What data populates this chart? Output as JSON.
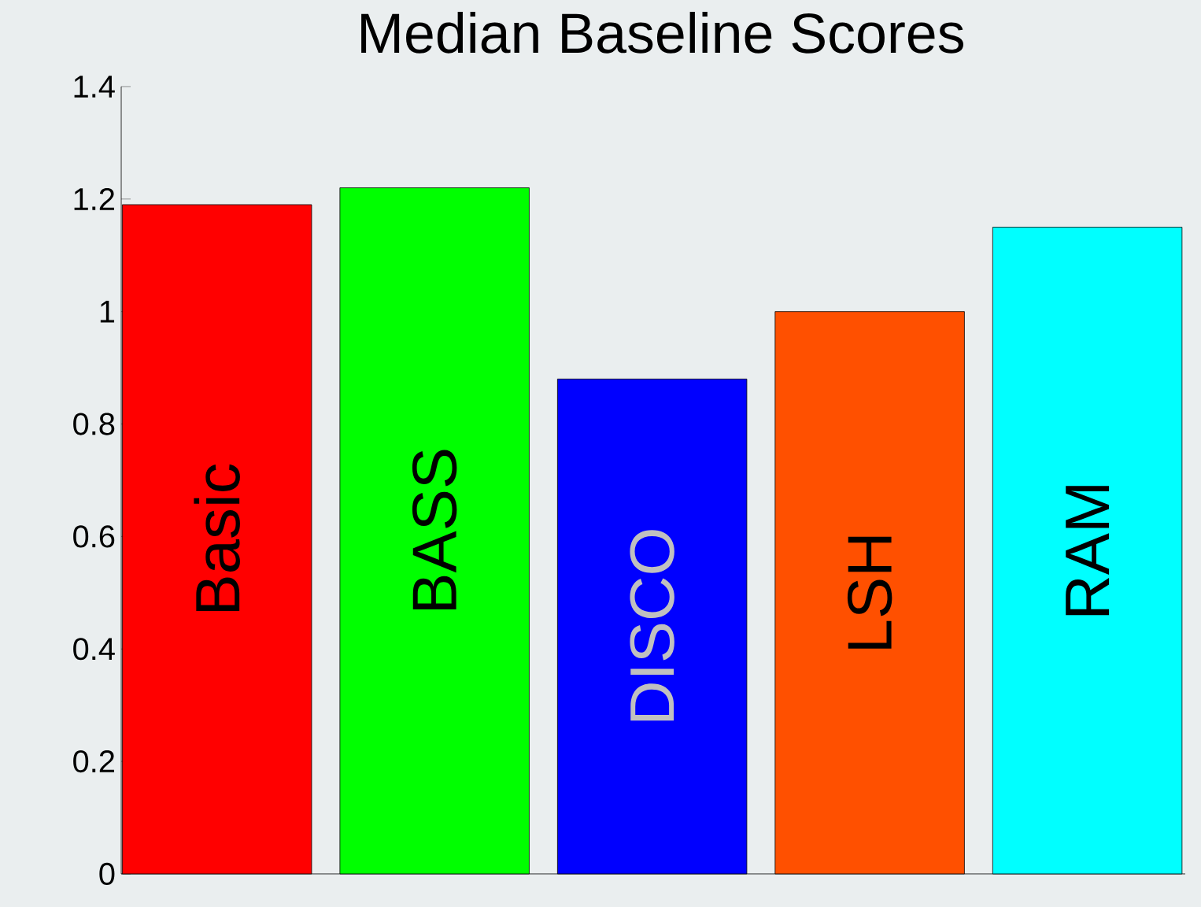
{
  "chart_data": {
    "type": "bar",
    "title": "Median Baseline Scores",
    "categories": [
      "Basic",
      "BASS",
      "DISCO",
      "LSH",
      "RAM"
    ],
    "values": [
      1.19,
      1.22,
      0.88,
      1.0,
      1.15
    ],
    "colors": [
      "#ff0000",
      "#00ff00",
      "#0000ff",
      "#ff5000",
      "#00ffff"
    ],
    "ylim": [
      0,
      1.4
    ],
    "yticks": [
      0,
      0.2,
      0.4,
      0.6,
      0.8,
      1,
      1.2,
      1.4
    ],
    "grid": false
  }
}
